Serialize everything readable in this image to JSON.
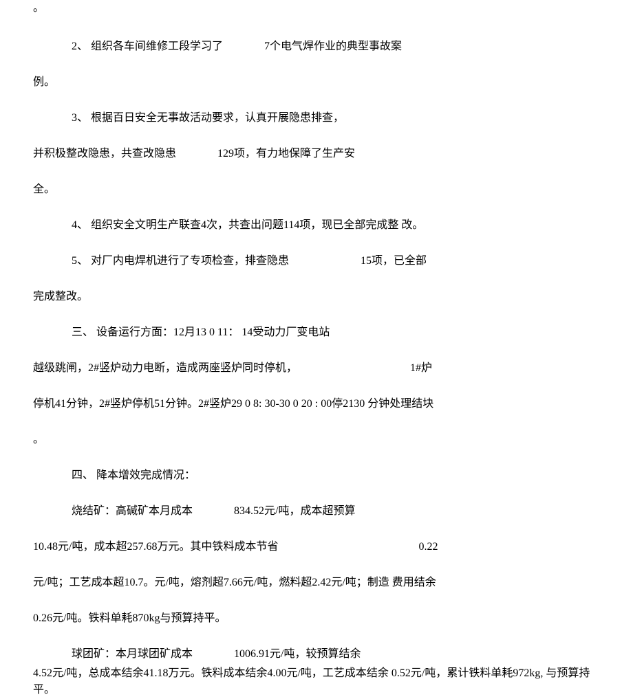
{
  "top_punct": "。",
  "item2": {
    "line1_prefix": "2、 组织各车间维修工段学习了",
    "line1_gap": "               ",
    "line1_suffix": "7个电气焊作业的典型事故案",
    "line2": "例。"
  },
  "item3": {
    "line1": "3、 根据百日安全无事故活动要求，认真开展隐患排查，",
    "line2_prefix": "并积极整改隐患，共查改隐患",
    "line2_gap": "               ",
    "line2_suffix": "129项，有力地保障了生产安",
    "line3": "全。"
  },
  "item4": {
    "text": "4、 组织安全文明生产联查4次，共查出问题114项，现已全部完成整 改。"
  },
  "item5": {
    "line1_prefix": "5、 对厂内电焊机进行了专项检查，排查隐患",
    "line1_gap": "                          ",
    "line1_suffix": "15项，已全部",
    "line2": "完成整改。"
  },
  "section3": {
    "line1": "三、 设备运行方面：12月13 0 11： 14受动力厂变电站",
    "line2_prefix": "越级跳闸，2#竖炉动力电断，造成两座竖炉同时停机，",
    "line2_gap": "                                         ",
    "line2_suffix": "1#炉",
    "line3": "停机41分钟，2#竖炉停机51分钟。2#竖炉29 0 8: 30-30 0 20 : 00停2130 分钟处理结块",
    "line4": "。"
  },
  "section4": {
    "title": "四、 降本增效完成情况：",
    "sinter": {
      "line1_prefix": "烧结矿：高碱矿本月成本",
      "line1_gap": "               ",
      "line1_suffix": "834.52元/吨，成本超预算",
      "line2_prefix": "10.48元/吨，成本超257.68万元。其中铁料成本节省",
      "line2_gap": "                                                   ",
      "line2_suffix": "0.22",
      "line3": "元/吨；工艺成本超10.7。元/吨，熔剂超7.66元/吨，燃料超2.42元/吨；制造 费用结余",
      "line4": "0.26元/吨。铁料单耗870kg与预算持平。"
    },
    "pellet": {
      "line1_prefix": "球团矿：本月球团矿成本",
      "line1_gap": "               ",
      "line1_suffix": "1006.91元/吨，较预算结余",
      "line2": "4.52元/吨，总成本结余41.18万元。铁料成本结余4.00元/吨，工艺成本结余 0.52元/吨，累计铁料单耗972kg, 与预算持平。"
    }
  }
}
